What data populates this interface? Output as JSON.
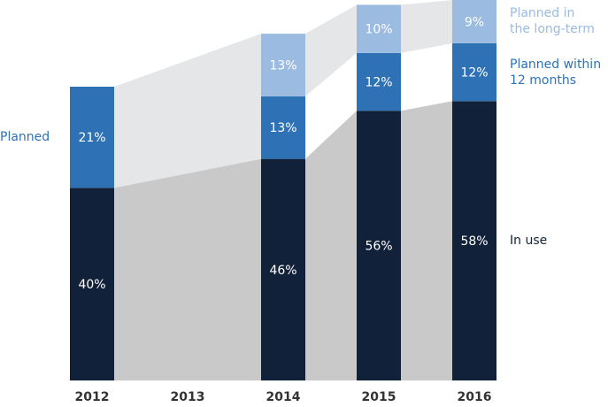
{
  "chart_data": {
    "type": "bar",
    "stacked": true,
    "categories": [
      "2012",
      "2013",
      "2014",
      "2015",
      "2016"
    ],
    "series": [
      {
        "name": "In use",
        "color": "#12213a",
        "values": [
          40,
          null,
          46,
          56,
          58
        ],
        "value_labels": [
          "40%",
          null,
          "46%",
          "56%",
          "58%"
        ]
      },
      {
        "name": "Planned within\n12 months",
        "color": "#2e72b5",
        "values": [
          21,
          null,
          13,
          12,
          12
        ],
        "value_labels": [
          "21%",
          null,
          "13%",
          "12%",
          "12%"
        ]
      },
      {
        "name": "Planned in\nthe long-term",
        "color": "#9bbbe0",
        "values": [
          null,
          null,
          13,
          10,
          9
        ],
        "value_labels": [
          null,
          null,
          "13%",
          "10%",
          "9%"
        ]
      }
    ],
    "annotation": "Planned",
    "ylim": [
      0,
      79
    ]
  }
}
